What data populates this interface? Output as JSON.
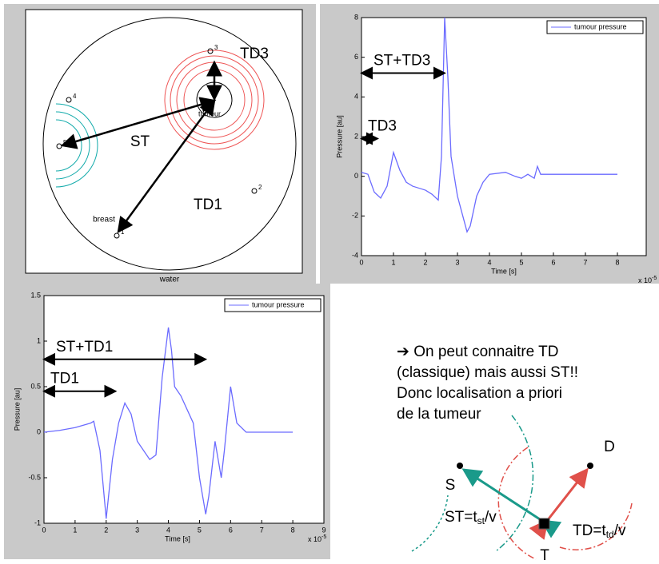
{
  "chart_data": [
    {
      "type": "line",
      "x_label": "Time [s]",
      "y_label": "Pressure [au]",
      "x_multiplier": {
        "base": "x 10",
        "exponent": "-5"
      },
      "x": [
        0,
        0.2,
        0.4,
        0.6,
        0.8,
        1.0,
        1.2,
        1.4,
        1.6,
        1.8,
        2.0,
        2.2,
        2.4,
        2.5,
        2.6,
        2.7,
        2.8,
        3.0,
        3.2,
        3.3,
        3.4,
        3.6,
        3.8,
        4.0,
        4.5,
        4.8,
        5.0,
        5.2,
        5.4,
        5.5,
        5.6,
        6.0,
        8.0
      ],
      "series": [
        {
          "name": "tumour pressure",
          "color": "#6b6bff",
          "values": [
            0.2,
            0.1,
            -0.8,
            -1.1,
            -0.5,
            1.2,
            0.3,
            -0.3,
            -0.5,
            -0.6,
            -0.7,
            -0.9,
            -1.2,
            1,
            8,
            5,
            1,
            -1,
            -2.2,
            -2.8,
            -2.5,
            -1.0,
            -0.3,
            0.1,
            0.2,
            0.0,
            -0.1,
            0.1,
            -0.1,
            0.5,
            0.1,
            0.1,
            0.1
          ]
        }
      ],
      "xlim": [
        0,
        8.9
      ],
      "ylim": [
        -4,
        8
      ],
      "xticks": [
        0,
        1,
        2,
        3,
        4,
        5,
        6,
        7,
        8
      ],
      "yticks": [
        -4,
        -2,
        0,
        2,
        4,
        6,
        8
      ],
      "annotations": [
        "ST+TD3",
        "TD3"
      ]
    },
    {
      "type": "line",
      "x_label": "Time [s]",
      "y_label": "Pressure [au]",
      "x_multiplier": {
        "base": "x 10",
        "exponent": "-5"
      },
      "x": [
        0,
        0.5,
        1,
        1.5,
        1.6,
        1.8,
        2.0,
        2.2,
        2.4,
        2.6,
        2.8,
        3.0,
        3.4,
        3.6,
        3.8,
        4.0,
        4.1,
        4.2,
        4.4,
        4.8,
        5.0,
        5.2,
        5.3,
        5.5,
        5.7,
        5.8,
        6.0,
        6.2,
        6.5,
        8
      ],
      "series": [
        {
          "name": "tumour pressure",
          "color": "#6b6bff",
          "values": [
            0,
            0.02,
            0.05,
            0.1,
            0.12,
            -0.2,
            -0.95,
            -0.3,
            0.1,
            0.32,
            0.2,
            -0.1,
            -0.3,
            -0.25,
            0.6,
            1.15,
            0.9,
            0.5,
            0.4,
            0.1,
            -0.5,
            -0.9,
            -0.7,
            -0.1,
            -0.5,
            -0.2,
            0.5,
            0.1,
            0,
            0
          ]
        }
      ],
      "xlim": [
        0,
        9
      ],
      "ylim": [
        -1,
        1.5
      ],
      "xticks": [
        0,
        1,
        2,
        3,
        4,
        5,
        6,
        7,
        8,
        9
      ],
      "yticks": [
        -1,
        -0.5,
        0,
        0.5,
        1,
        1.5
      ],
      "annotations": [
        "ST+TD1",
        "TD1"
      ]
    }
  ],
  "breast_diagram": {
    "water": "water",
    "breast": "breast",
    "tumour": "tumour",
    "st": "ST",
    "td1": "TD1",
    "td3": "TD3",
    "sensors": [
      "1",
      "2",
      "3",
      "4",
      "5"
    ]
  },
  "note": {
    "lines": [
      "➔ On peut connaitre TD",
      "(classique) mais aussi ST!!",
      "Donc localisation a priori",
      "de la tumeur"
    ]
  },
  "geometry": {
    "s": "S",
    "d": "D",
    "t": "T",
    "st": {
      "main": "ST=t",
      "sub": "st",
      "tail": "/v"
    },
    "td": {
      "main": "TD=t",
      "sub": "td",
      "tail": "/v"
    }
  }
}
